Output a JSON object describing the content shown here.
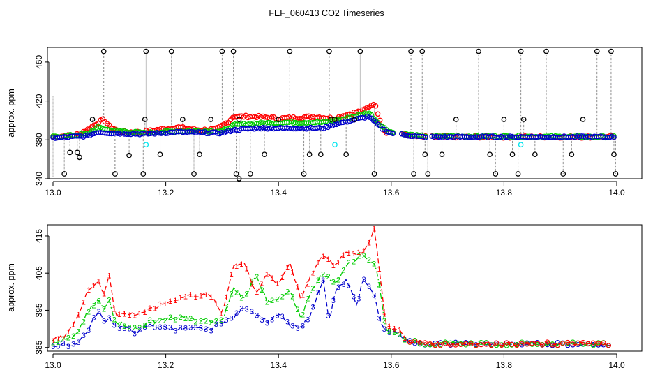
{
  "figure_title": "FEF_060413  CO2 Timeseries",
  "colors": {
    "ch0": "#000000",
    "ch1": "#ff0000",
    "ch2": "#00cc00",
    "ch3": "#0000cc",
    "cyan": "#00e5ee",
    "link": "#808080"
  },
  "chart_data": [
    {
      "type": "scatter",
      "title": "",
      "xlabel": "",
      "ylabel": "approx. ppm",
      "xlim": [
        13.0,
        14.0
      ],
      "ylim": [
        340,
        475
      ],
      "xticks": [
        13.0,
        13.2,
        13.4,
        13.6,
        13.8,
        14.0
      ],
      "xtick_labels": [
        "13.0",
        "13.2",
        "13.4",
        "13.6",
        "13.8",
        "14.0"
      ],
      "yticks": [
        340,
        380,
        420,
        460
      ],
      "ytick_labels": [
        "340",
        "380",
        "420",
        "460"
      ],
      "marker": "circle",
      "breakpoints": {
        "red": [
          [
            13.0,
            383
          ],
          [
            13.04,
            385
          ],
          [
            13.06,
            390
          ],
          [
            13.08,
            398
          ],
          [
            13.09,
            401
          ],
          [
            13.1,
            394
          ],
          [
            13.12,
            388
          ],
          [
            13.16,
            388
          ],
          [
            13.18,
            390
          ],
          [
            13.22,
            393
          ],
          [
            13.26,
            390
          ],
          [
            13.29,
            391
          ],
          [
            13.31,
            398
          ],
          [
            13.32,
            404
          ],
          [
            13.36,
            404
          ],
          [
            13.4,
            402
          ],
          [
            13.44,
            403
          ],
          [
            13.46,
            404
          ],
          [
            13.5,
            402
          ],
          [
            13.52,
            406
          ],
          [
            13.55,
            410
          ],
          [
            13.57,
            418
          ],
          [
            13.585,
            393
          ],
          [
            13.59,
            388
          ],
          [
            13.62,
            386
          ],
          [
            13.65,
            383
          ],
          [
            14.0,
            383
          ]
        ],
        "green": [
          [
            13.0,
            383
          ],
          [
            13.06,
            386
          ],
          [
            13.08,
            393
          ],
          [
            13.1,
            390
          ],
          [
            13.16,
            387
          ],
          [
            13.22,
            389
          ],
          [
            13.3,
            389
          ],
          [
            13.32,
            395
          ],
          [
            13.36,
            397
          ],
          [
            13.42,
            398
          ],
          [
            13.48,
            398
          ],
          [
            13.52,
            402
          ],
          [
            13.56,
            408
          ],
          [
            13.585,
            393
          ],
          [
            13.6,
            388
          ],
          [
            13.65,
            384
          ],
          [
            14.0,
            383
          ]
        ],
        "blue": [
          [
            13.0,
            382
          ],
          [
            13.06,
            384
          ],
          [
            13.08,
            388
          ],
          [
            13.1,
            387
          ],
          [
            13.16,
            386
          ],
          [
            13.22,
            388
          ],
          [
            13.3,
            387
          ],
          [
            13.32,
            390
          ],
          [
            13.36,
            392
          ],
          [
            13.42,
            392
          ],
          [
            13.48,
            392
          ],
          [
            13.5,
            396
          ],
          [
            13.56,
            404
          ],
          [
            13.585,
            391
          ],
          [
            13.6,
            387
          ],
          [
            13.65,
            383
          ],
          [
            14.0,
            383
          ]
        ]
      },
      "series": [
        {
          "name": "1",
          "color": "#ff0000",
          "x_range": [
            13.0,
            13.995
          ],
          "n_points": 260
        },
        {
          "name": "2",
          "color": "#00cc00",
          "x_range": [
            13.0,
            13.995
          ],
          "n_points": 260
        },
        {
          "name": "3",
          "color": "#0000cc",
          "x_range": [
            13.0,
            13.995
          ],
          "n_points": 260
        },
        {
          "name": "0",
          "color": "#000000",
          "values": [
            [
              13.02,
              345
            ],
            [
              13.03,
              367
            ],
            [
              13.043,
              367
            ],
            [
              13.047,
              362
            ],
            [
              13.07,
              401
            ],
            [
              13.09,
              471
            ],
            [
              13.11,
              345
            ],
            [
              13.135,
              364
            ],
            [
              13.16,
              345
            ],
            [
              13.163,
              401
            ],
            [
              13.165,
              471
            ],
            [
              13.19,
              365
            ],
            [
              13.21,
              471
            ],
            [
              13.23,
              401
            ],
            [
              13.25,
              345
            ],
            [
              13.26,
              365
            ],
            [
              13.28,
              401
            ],
            [
              13.3,
              471
            ],
            [
              13.32,
              471
            ],
            [
              13.325,
              345
            ],
            [
              13.33,
              401
            ],
            [
              13.33,
              340
            ],
            [
              13.35,
              345
            ],
            [
              13.375,
              365
            ],
            [
              13.4,
              401
            ],
            [
              13.42,
              471
            ],
            [
              13.445,
              345
            ],
            [
              13.455,
              365
            ],
            [
              13.475,
              365
            ],
            [
              13.49,
              471
            ],
            [
              13.493,
              401
            ],
            [
              13.5,
              401
            ],
            [
              13.52,
              365
            ],
            [
              13.535,
              401
            ],
            [
              13.545,
              471
            ],
            [
              13.57,
              345
            ],
            [
              13.635,
              471
            ],
            [
              13.64,
              345
            ],
            [
              13.655,
              471
            ],
            [
              13.66,
              365
            ],
            [
              13.665,
              345
            ],
            [
              13.69,
              365
            ],
            [
              13.715,
              401
            ],
            [
              13.755,
              471
            ],
            [
              13.775,
              365
            ],
            [
              13.785,
              345
            ],
            [
              13.8,
              401
            ],
            [
              13.815,
              365
            ],
            [
              13.825,
              345
            ],
            [
              13.83,
              471
            ],
            [
              13.835,
              401
            ],
            [
              13.855,
              365
            ],
            [
              13.875,
              471
            ],
            [
              13.905,
              345
            ],
            [
              13.92,
              365
            ],
            [
              13.94,
              401
            ],
            [
              13.965,
              471
            ],
            [
              13.99,
              471
            ],
            [
              13.995,
              365
            ],
            [
              13.998,
              345
            ]
          ]
        },
        {
          "name": "cyan",
          "color": "#00e5ee",
          "values": [
            [
              13.165,
              375
            ],
            [
              13.5,
              375
            ],
            [
              13.83,
              375
            ]
          ]
        }
      ]
    },
    {
      "type": "line",
      "title": "",
      "xlabel": "",
      "ylabel": "approx. ppm",
      "xlim": [
        13.0,
        14.0
      ],
      "ylim": [
        384,
        418
      ],
      "xticks": [
        13.0,
        13.2,
        13.4,
        13.6,
        13.8,
        14.0
      ],
      "xtick_labels": [
        "13.0",
        "13.2",
        "13.4",
        "13.6",
        "13.8",
        "14.0"
      ],
      "yticks": [
        385,
        395,
        405,
        415
      ],
      "ytick_labels": [
        "385",
        "395",
        "405",
        "415"
      ],
      "marker": "digit",
      "series": [
        {
          "name": "1",
          "color": "#ff0000",
          "line": "dashed",
          "breakpoints": [
            [
              13.0,
              387
            ],
            [
              13.02,
              388
            ],
            [
              13.04,
              392
            ],
            [
              13.06,
              400
            ],
            [
              13.08,
              403
            ],
            [
              13.09,
              399
            ],
            [
              13.1,
              405
            ],
            [
              13.11,
              394
            ],
            [
              13.15,
              394
            ],
            [
              13.17,
              395
            ],
            [
              13.2,
              397
            ],
            [
              13.24,
              399
            ],
            [
              13.28,
              399
            ],
            [
              13.3,
              394
            ],
            [
              13.32,
              407
            ],
            [
              13.34,
              408
            ],
            [
              13.36,
              399
            ],
            [
              13.38,
              405
            ],
            [
              13.4,
              402
            ],
            [
              13.42,
              408
            ],
            [
              13.44,
              398
            ],
            [
              13.46,
              405
            ],
            [
              13.48,
              410
            ],
            [
              13.5,
              407
            ],
            [
              13.52,
              411
            ],
            [
              13.55,
              410
            ],
            [
              13.57,
              417
            ],
            [
              13.58,
              405
            ],
            [
              13.59,
              391
            ],
            [
              13.62,
              389
            ],
            [
              13.625,
              387
            ],
            [
              13.66,
              386
            ],
            [
              14.0,
              386
            ]
          ]
        },
        {
          "name": "2",
          "color": "#00cc00",
          "line": "dashdot",
          "breakpoints": [
            [
              13.0,
              386
            ],
            [
              13.04,
              388
            ],
            [
              13.06,
              394
            ],
            [
              13.08,
              398
            ],
            [
              13.09,
              395
            ],
            [
              13.1,
              398
            ],
            [
              13.11,
              392
            ],
            [
              13.15,
              390
            ],
            [
              13.17,
              392
            ],
            [
              13.22,
              393
            ],
            [
              13.28,
              392
            ],
            [
              13.3,
              392
            ],
            [
              13.32,
              401
            ],
            [
              13.34,
              398
            ],
            [
              13.36,
              405
            ],
            [
              13.38,
              397
            ],
            [
              13.4,
              398
            ],
            [
              13.42,
              400
            ],
            [
              13.44,
              393
            ],
            [
              13.46,
              401
            ],
            [
              13.48,
              405
            ],
            [
              13.5,
              402
            ],
            [
              13.52,
              407
            ],
            [
              13.55,
              410
            ],
            [
              13.57,
              408
            ],
            [
              13.58,
              401
            ],
            [
              13.59,
              390
            ],
            [
              13.62,
              388
            ],
            [
              13.625,
              387
            ],
            [
              13.66,
              386
            ],
            [
              14.0,
              386
            ]
          ]
        },
        {
          "name": "3",
          "color": "#0000cc",
          "line": "dashed",
          "breakpoints": [
            [
              13.0,
              385.5
            ],
            [
              13.04,
              386
            ],
            [
              13.06,
              389
            ],
            [
              13.08,
              395
            ],
            [
              13.09,
              392
            ],
            [
              13.1,
              393
            ],
            [
              13.11,
              391
            ],
            [
              13.15,
              389
            ],
            [
              13.17,
              391
            ],
            [
              13.22,
              390
            ],
            [
              13.28,
              390
            ],
            [
              13.3,
              392
            ],
            [
              13.32,
              393
            ],
            [
              13.34,
              396
            ],
            [
              13.36,
              394
            ],
            [
              13.38,
              392
            ],
            [
              13.4,
              394
            ],
            [
              13.42,
              391
            ],
            [
              13.44,
              390
            ],
            [
              13.46,
              395
            ],
            [
              13.48,
              404
            ],
            [
              13.49,
              391
            ],
            [
              13.5,
              400
            ],
            [
              13.52,
              403
            ],
            [
              13.54,
              396
            ],
            [
              13.55,
              404
            ],
            [
              13.57,
              399
            ],
            [
              13.58,
              392
            ],
            [
              13.59,
              390
            ],
            [
              13.62,
              388
            ],
            [
              13.625,
              387
            ],
            [
              13.66,
              386
            ],
            [
              14.0,
              386
            ]
          ]
        }
      ]
    }
  ]
}
